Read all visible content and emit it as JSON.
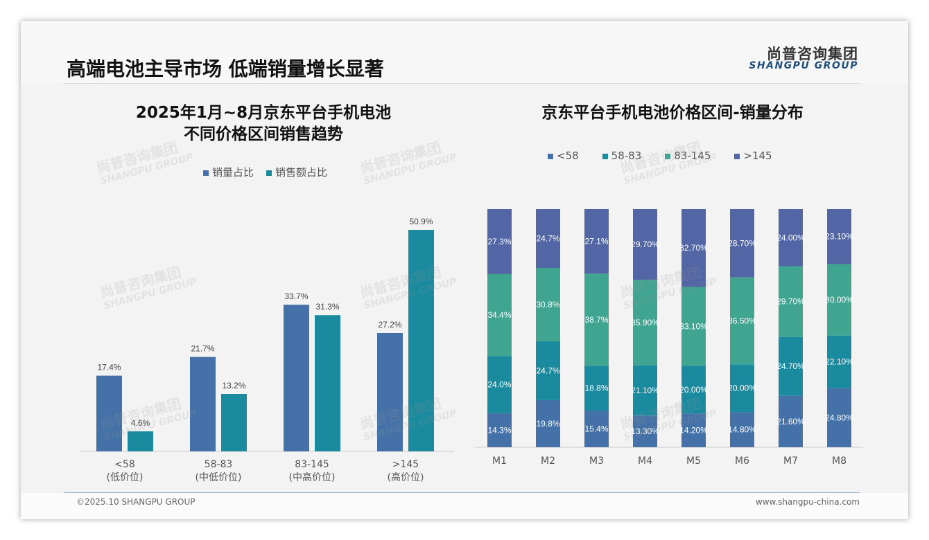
{
  "header": {
    "title": "高端电池主导市场 低端销量增长显著",
    "logo_cn": "尚普咨询集团",
    "logo_en": "SHANGPU GROUP"
  },
  "footer": {
    "copyright": "©2025.10 SHANGPU GROUP",
    "website": "www.shangpu-china.com"
  },
  "watermark": {
    "cn": "尚普咨询集团",
    "en": "SHANGPU GROUP"
  },
  "colors": {
    "blue": "#4472a8",
    "teal": "#1a8a9f",
    "green": "#3fa590",
    "indigo": "#5266a5"
  },
  "chart_data": [
    {
      "type": "bar",
      "title_line1": "2025年1月~8月京东平台手机电池",
      "title_line2": "不同价格区间销售趋势",
      "categories": [
        {
          "label": "<58",
          "sub": "(低价位)"
        },
        {
          "label": "58-83",
          "sub": "(中低价位)"
        },
        {
          "label": "83-145",
          "sub": "(中高价位)"
        },
        {
          "label": ">145",
          "sub": "(高价位)"
        }
      ],
      "series": [
        {
          "name": "销量占比",
          "color": "#4472a8",
          "values": [
            17.4,
            21.7,
            33.7,
            27.2
          ],
          "labels": [
            "17.4%",
            "21.7%",
            "33.7%",
            "27.2%"
          ]
        },
        {
          "name": "销售额占比",
          "color": "#1a8a9f",
          "values": [
            4.6,
            13.2,
            31.3,
            50.9
          ],
          "labels": [
            "4.6%",
            "13.2%",
            "31.3%",
            "50.9%"
          ]
        }
      ],
      "legend": "top-center",
      "ylim": [
        0,
        55
      ]
    },
    {
      "type": "bar",
      "stacked": true,
      "title": "京东平台手机电池价格区间-销量分布",
      "categories": [
        "M1",
        "M2",
        "M3",
        "M4",
        "M5",
        "M6",
        "M7",
        "M8"
      ],
      "series": [
        {
          "name": "<58",
          "color": "#4472a8",
          "values": [
            14.3,
            19.8,
            15.4,
            13.3,
            14.2,
            14.8,
            21.6,
            24.8
          ],
          "labels": [
            "14.3%",
            "19.8%",
            "15.4%",
            "13.30%",
            "14.20%",
            "14.80%",
            "21.60%",
            "24.80%"
          ]
        },
        {
          "name": "58-83",
          "color": "#1a8a9f",
          "values": [
            24.0,
            24.7,
            18.8,
            21.1,
            20.0,
            20.0,
            24.7,
            22.1
          ],
          "labels": [
            "24.0%",
            "24.7%",
            "18.8%",
            "21.10%",
            "20.00%",
            "20.00%",
            "24.70%",
            "22.10%"
          ]
        },
        {
          "name": "83-145",
          "color": "#3fa590",
          "values": [
            34.4,
            30.8,
            38.7,
            35.9,
            33.1,
            36.5,
            29.7,
            30.0
          ],
          "labels": [
            "34.4%",
            "30.8%",
            "38.7%",
            "35.90%",
            "33.10%",
            "36.50%",
            "29.70%",
            "30.00%"
          ]
        },
        {
          "name": ">145",
          "color": "#5266a5",
          "values": [
            27.3,
            24.7,
            27.1,
            29.7,
            32.7,
            28.7,
            24.0,
            23.1
          ],
          "labels": [
            "27.3%",
            "24.7%",
            "27.1%",
            "29.70%",
            "32.70%",
            "28.70%",
            "24.00%",
            "23.10%"
          ]
        }
      ],
      "legend": "top-center",
      "ylim": [
        0,
        100
      ]
    }
  ]
}
